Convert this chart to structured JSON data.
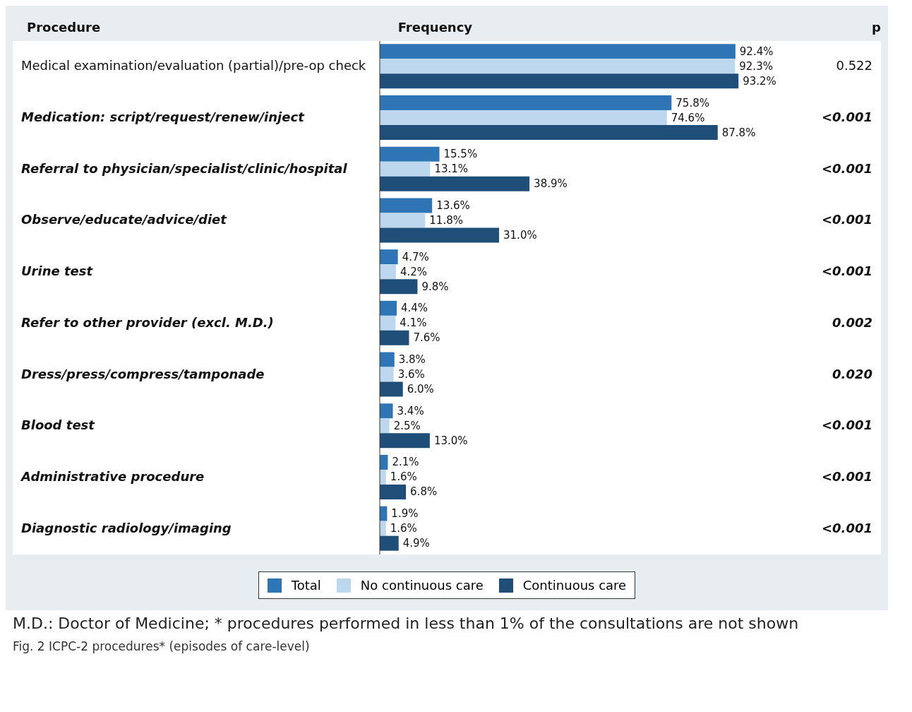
{
  "chart_data": {
    "type": "bar",
    "orientation": "horizontal",
    "title": "Fig. 2 ICPC-2 procedures* (episodes of care-level)",
    "ylabel": "Procedure",
    "xlabel": "Frequency",
    "categories": [
      "Medical examination/evaluation (partial)/pre-op check",
      "Medication: script/request/renew/inject",
      "Referral to physician/specialist/clinic/hospital",
      "Observe/educate/advice/diet",
      "Urine test",
      "Refer to other provider (excl. M.D.)",
      "Dress/press/compress/tamponade",
      "Blood test",
      "Administrative procedure",
      "Diagnostic radiology/imaging"
    ],
    "series": [
      {
        "name": "Total",
        "color": "#2e75b6",
        "values": [
          92.4,
          75.8,
          15.5,
          13.6,
          4.7,
          4.4,
          3.8,
          3.4,
          2.1,
          1.9
        ],
        "value_labels": [
          "92.4%",
          "75.8%",
          "15.5%",
          "13.6%",
          "4.7%",
          "4.4%",
          "3.8%",
          "3.4%",
          "2.1%",
          "1.9%"
        ]
      },
      {
        "name": "No continuous care",
        "color": "#bdd7ee",
        "values": [
          92.3,
          74.6,
          13.1,
          11.8,
          4.2,
          4.1,
          3.6,
          2.5,
          1.6,
          1.6
        ],
        "value_labels": [
          "92.3%",
          "74.6%",
          "13.1%",
          "11.8%",
          "4.2%",
          "4.1%",
          "3.6%",
          "2.5%",
          "1.6%",
          "1.6%"
        ]
      },
      {
        "name": "Continuous care",
        "color": "#1f4e79",
        "values": [
          93.2,
          87.8,
          38.9,
          31.0,
          9.8,
          7.6,
          6.0,
          13.0,
          6.8,
          4.9
        ],
        "value_labels": [
          "93.2%",
          "87.8%",
          "38.9%",
          "31.0%",
          "9.8%",
          "7.6%",
          "6.0%",
          "13.0%",
          "6.8%",
          "4.9%"
        ]
      }
    ],
    "tick_labels": false,
    "legend": "bottom",
    "annotations": [
      "0.522",
      "<0.001",
      "<0.001",
      "<0.001",
      "<0.001",
      "0.002",
      "0.020",
      "<0.001",
      "<0.001",
      "<0.001",
      "p",
      "M.D.: Doctor of Medicine; * procedures performed in less than 1% of the consultations are not shown"
    ]
  }
}
